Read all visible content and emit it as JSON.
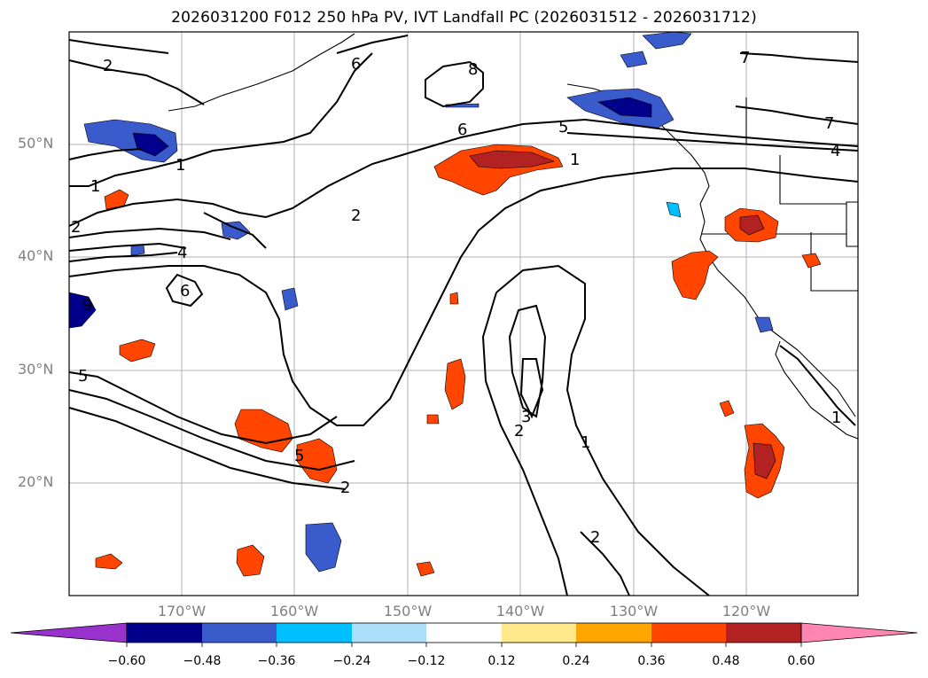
{
  "title": "2026031200 F012 250 hPa PV, IVT Landfall PC (2026031512 - 2026031712)",
  "map": {
    "lat_labels": [
      "50°N",
      "40°N",
      "30°N",
      "20°N"
    ],
    "lon_labels": [
      "170°W",
      "160°W",
      "150°W",
      "140°W",
      "130°W",
      "120°W"
    ],
    "lat_range": [
      10,
      59.7
    ],
    "lon_range": [
      -180,
      -110
    ]
  },
  "contour_labels": [
    "2",
    "1",
    "2",
    "8",
    "6",
    "5",
    "7",
    "7",
    "4",
    "1",
    "6",
    "5",
    "1",
    "2",
    "4",
    "6",
    "9",
    "5",
    "3",
    "2",
    "1",
    "2",
    "1",
    "2"
  ],
  "colorbar": {
    "ticks": [
      "−0.60",
      "−0.48",
      "−0.36",
      "−0.24",
      "−0.12",
      "0.12",
      "0.24",
      "0.36",
      "0.48",
      "0.60"
    ],
    "colors": [
      "#9932CC",
      "#00008B",
      "#3A5BCB",
      "#00BFFF",
      "#ADDFFA",
      "#FFFFFF",
      "#FFE98A",
      "#FFA500",
      "#FF4500",
      "#B22222",
      "#FF86B0"
    ]
  },
  "shade_colors": {
    "deep_blue": "#00008B",
    "blue": "#3A5BCB",
    "light_blue": "#00BFFF",
    "yellow": "#FFE98A",
    "orange": "#FFA500",
    "red_orange": "#FF4500",
    "dark_red": "#B22222"
  }
}
